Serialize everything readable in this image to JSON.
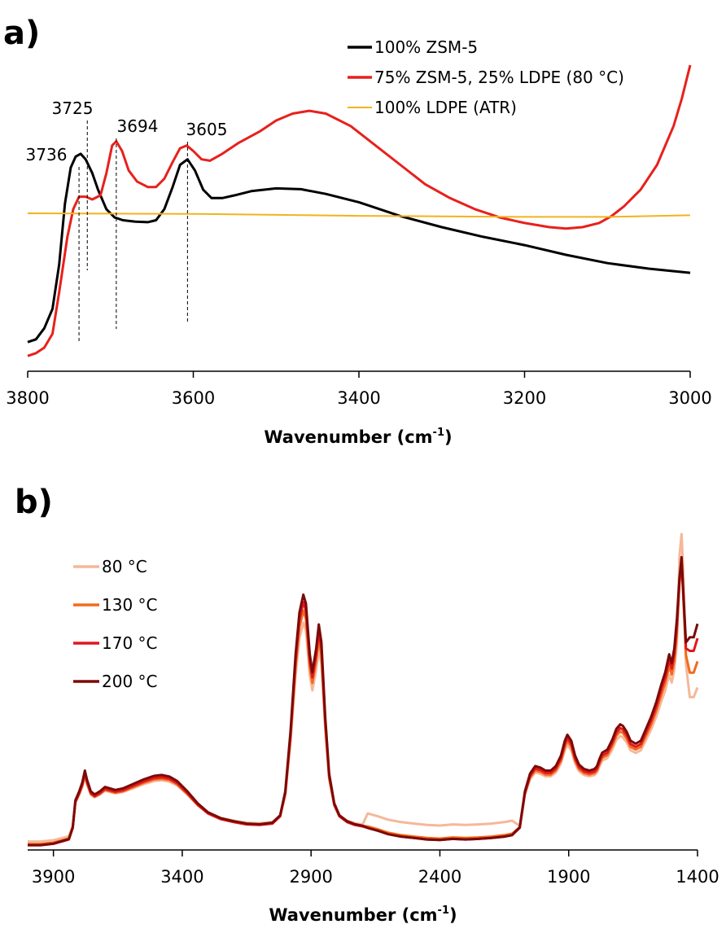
{
  "chart_data": [
    {
      "panel": "a)",
      "type": "line",
      "xlabel": "Wavenumber (cm",
      "xlabel_sup": "-1",
      "xlabel_end": ")",
      "ylabel": "",
      "xlim": [
        3800,
        3000
      ],
      "x_reversed": true,
      "xticks": [
        3800,
        3600,
        3400,
        3200,
        3000
      ],
      "y_axis_visible": false,
      "grid": false,
      "legend_position": "top-right",
      "annotations": [
        {
          "label": "3736",
          "x": 3738
        },
        {
          "label": "3725",
          "x": 3728
        },
        {
          "label": "3694",
          "x": 3693
        },
        {
          "label": "3605",
          "x": 3607
        }
      ],
      "series": [
        {
          "name": "100% ZSM-5",
          "color": "#000000",
          "points": [
            [
              3800,
              0.12
            ],
            [
              3790,
              0.13
            ],
            [
              3780,
              0.17
            ],
            [
              3770,
              0.24
            ],
            [
              3762,
              0.4
            ],
            [
              3755,
              0.62
            ],
            [
              3748,
              0.75
            ],
            [
              3742,
              0.79
            ],
            [
              3736,
              0.8
            ],
            [
              3730,
              0.78
            ],
            [
              3722,
              0.73
            ],
            [
              3715,
              0.67
            ],
            [
              3705,
              0.6
            ],
            [
              3695,
              0.57
            ],
            [
              3685,
              0.56
            ],
            [
              3670,
              0.555
            ],
            [
              3655,
              0.553
            ],
            [
              3645,
              0.56
            ],
            [
              3635,
              0.6
            ],
            [
              3625,
              0.68
            ],
            [
              3616,
              0.76
            ],
            [
              3607,
              0.78
            ],
            [
              3598,
              0.74
            ],
            [
              3588,
              0.67
            ],
            [
              3578,
              0.64
            ],
            [
              3565,
              0.64
            ],
            [
              3550,
              0.65
            ],
            [
              3530,
              0.665
            ],
            [
              3500,
              0.675
            ],
            [
              3470,
              0.672
            ],
            [
              3440,
              0.655
            ],
            [
              3400,
              0.625
            ],
            [
              3350,
              0.575
            ],
            [
              3300,
              0.535
            ],
            [
              3250,
              0.5
            ],
            [
              3200,
              0.47
            ],
            [
              3150,
              0.435
            ],
            [
              3100,
              0.405
            ],
            [
              3050,
              0.385
            ],
            [
              3000,
              0.37
            ]
          ]
        },
        {
          "name": "75% ZSM-5, 25% LDPE (80 °C)",
          "color": "#e8201c",
          "points": [
            [
              3800,
              0.07
            ],
            [
              3790,
              0.08
            ],
            [
              3780,
              0.1
            ],
            [
              3770,
              0.15
            ],
            [
              3762,
              0.3
            ],
            [
              3752,
              0.5
            ],
            [
              3745,
              0.6
            ],
            [
              3738,
              0.645
            ],
            [
              3730,
              0.645
            ],
            [
              3722,
              0.635
            ],
            [
              3712,
              0.65
            ],
            [
              3705,
              0.73
            ],
            [
              3698,
              0.83
            ],
            [
              3693,
              0.845
            ],
            [
              3686,
              0.81
            ],
            [
              3678,
              0.74
            ],
            [
              3668,
              0.7
            ],
            [
              3655,
              0.68
            ],
            [
              3645,
              0.68
            ],
            [
              3635,
              0.71
            ],
            [
              3625,
              0.77
            ],
            [
              3616,
              0.82
            ],
            [
              3608,
              0.83
            ],
            [
              3600,
              0.81
            ],
            [
              3590,
              0.78
            ],
            [
              3580,
              0.775
            ],
            [
              3565,
              0.8
            ],
            [
              3545,
              0.84
            ],
            [
              3520,
              0.88
            ],
            [
              3500,
              0.92
            ],
            [
              3480,
              0.945
            ],
            [
              3460,
              0.955
            ],
            [
              3440,
              0.945
            ],
            [
              3410,
              0.9
            ],
            [
              3380,
              0.83
            ],
            [
              3350,
              0.76
            ],
            [
              3320,
              0.69
            ],
            [
              3290,
              0.64
            ],
            [
              3260,
              0.6
            ],
            [
              3230,
              0.57
            ],
            [
              3200,
              0.55
            ],
            [
              3170,
              0.535
            ],
            [
              3150,
              0.53
            ],
            [
              3130,
              0.535
            ],
            [
              3110,
              0.55
            ],
            [
              3095,
              0.575
            ],
            [
              3080,
              0.61
            ],
            [
              3060,
              0.67
            ],
            [
              3040,
              0.76
            ],
            [
              3020,
              0.9
            ],
            [
              3010,
              1.0
            ],
            [
              3000,
              1.12
            ]
          ]
        },
        {
          "name": "100% LDPE (ATR)",
          "color": "#f0b41e",
          "points": [
            [
              3800,
              0.585
            ],
            [
              3600,
              0.583
            ],
            [
              3400,
              0.576
            ],
            [
              3200,
              0.572
            ],
            [
              3100,
              0.572
            ],
            [
              3000,
              0.578
            ]
          ]
        }
      ]
    },
    {
      "panel": "b)",
      "type": "line",
      "xlabel": "Wavenumber (cm",
      "xlabel_sup": "-1",
      "xlabel_end": ")",
      "ylabel": "",
      "xlim": [
        4000,
        1400
      ],
      "x_reversed": true,
      "xticks": [
        3900,
        3400,
        2900,
        2400,
        1900,
        1400
      ],
      "y_axis_visible": false,
      "grid": false,
      "legend_position": "top-left",
      "series": [
        {
          "name": "80 °C",
          "color": "#f5b89a",
          "offset": 0,
          "scale": 0.9,
          "tail": 0.55,
          "peak1450": 1.08
        },
        {
          "name": "130 °C",
          "color": "#f26b1d",
          "offset": -0.01,
          "scale": 0.96,
          "tail": 0.64,
          "peak1450": 0.98
        },
        {
          "name": "170 °C",
          "color": "#e3161e",
          "offset": -0.015,
          "scale": 1.0,
          "tail": 0.72,
          "peak1450": 0.99
        },
        {
          "name": "200 °C",
          "color": "#7b0a08",
          "offset": -0.015,
          "scale": 1.03,
          "tail": 0.77,
          "peak1450": 1.0
        }
      ],
      "base_shape": [
        [
          4000,
          0.02
        ],
        [
          3950,
          0.02
        ],
        [
          3900,
          0.025
        ],
        [
          3860,
          0.035
        ],
        [
          3840,
          0.04
        ],
        [
          3825,
          0.08
        ],
        [
          3815,
          0.17
        ],
        [
          3800,
          0.2
        ],
        [
          3788,
          0.23
        ],
        [
          3778,
          0.27
        ],
        [
          3770,
          0.24
        ],
        [
          3755,
          0.2
        ],
        [
          3740,
          0.19
        ],
        [
          3720,
          0.2
        ],
        [
          3700,
          0.215
        ],
        [
          3680,
          0.21
        ],
        [
          3660,
          0.205
        ],
        [
          3630,
          0.21
        ],
        [
          3590,
          0.225
        ],
        [
          3550,
          0.24
        ],
        [
          3510,
          0.252
        ],
        [
          3480,
          0.255
        ],
        [
          3450,
          0.25
        ],
        [
          3420,
          0.235
        ],
        [
          3380,
          0.2
        ],
        [
          3340,
          0.16
        ],
        [
          3300,
          0.13
        ],
        [
          3250,
          0.11
        ],
        [
          3200,
          0.1
        ],
        [
          3150,
          0.092
        ],
        [
          3100,
          0.09
        ],
        [
          3050,
          0.095
        ],
        [
          3020,
          0.12
        ],
        [
          3000,
          0.2
        ],
        [
          2980,
          0.4
        ],
        [
          2960,
          0.66
        ],
        [
          2945,
          0.8
        ],
        [
          2930,
          0.86
        ],
        [
          2920,
          0.83
        ],
        [
          2905,
          0.66
        ],
        [
          2895,
          0.6
        ],
        [
          2880,
          0.68
        ],
        [
          2870,
          0.76
        ],
        [
          2860,
          0.7
        ],
        [
          2845,
          0.45
        ],
        [
          2830,
          0.26
        ],
        [
          2810,
          0.16
        ],
        [
          2790,
          0.12
        ],
        [
          2760,
          0.1
        ],
        [
          2730,
          0.09
        ],
        [
          2700,
          0.085
        ],
        [
          2680,
          0.08
        ],
        [
          2640,
          0.07
        ],
        [
          2600,
          0.058
        ],
        [
          2550,
          0.05
        ],
        [
          2500,
          0.045
        ],
        [
          2450,
          0.04
        ],
        [
          2400,
          0.038
        ],
        [
          2350,
          0.042
        ],
        [
          2300,
          0.04
        ],
        [
          2250,
          0.042
        ],
        [
          2200,
          0.045
        ],
        [
          2150,
          0.05
        ],
        [
          2120,
          0.055
        ],
        [
          2090,
          0.08
        ],
        [
          2070,
          0.2
        ],
        [
          2050,
          0.26
        ],
        [
          2030,
          0.285
        ],
        [
          2010,
          0.28
        ],
        [
          1990,
          0.27
        ],
        [
          1970,
          0.27
        ],
        [
          1950,
          0.285
        ],
        [
          1930,
          0.32
        ],
        [
          1915,
          0.37
        ],
        [
          1905,
          0.39
        ],
        [
          1890,
          0.37
        ],
        [
          1875,
          0.32
        ],
        [
          1860,
          0.29
        ],
        [
          1840,
          0.275
        ],
        [
          1820,
          0.27
        ],
        [
          1800,
          0.275
        ],
        [
          1790,
          0.285
        ],
        [
          1780,
          0.31
        ],
        [
          1770,
          0.33
        ],
        [
          1750,
          0.34
        ],
        [
          1730,
          0.375
        ],
        [
          1715,
          0.41
        ],
        [
          1700,
          0.425
        ],
        [
          1690,
          0.42
        ],
        [
          1675,
          0.4
        ],
        [
          1660,
          0.37
        ],
        [
          1640,
          0.36
        ],
        [
          1620,
          0.37
        ],
        [
          1600,
          0.41
        ],
        [
          1580,
          0.45
        ],
        [
          1560,
          0.5
        ],
        [
          1540,
          0.56
        ],
        [
          1525,
          0.6
        ],
        [
          1510,
          0.66
        ],
        [
          1500,
          0.63
        ],
        [
          1490,
          0.68
        ],
        [
          1480,
          0.78
        ],
        [
          1470,
          0.9
        ],
        [
          1462,
          0.97
        ],
        [
          1455,
          0.85
        ],
        [
          1445,
          0.7
        ],
        [
          1430,
          0.62
        ],
        [
          1415,
          0.62
        ],
        [
          1400,
          0.66
        ]
      ]
    }
  ]
}
